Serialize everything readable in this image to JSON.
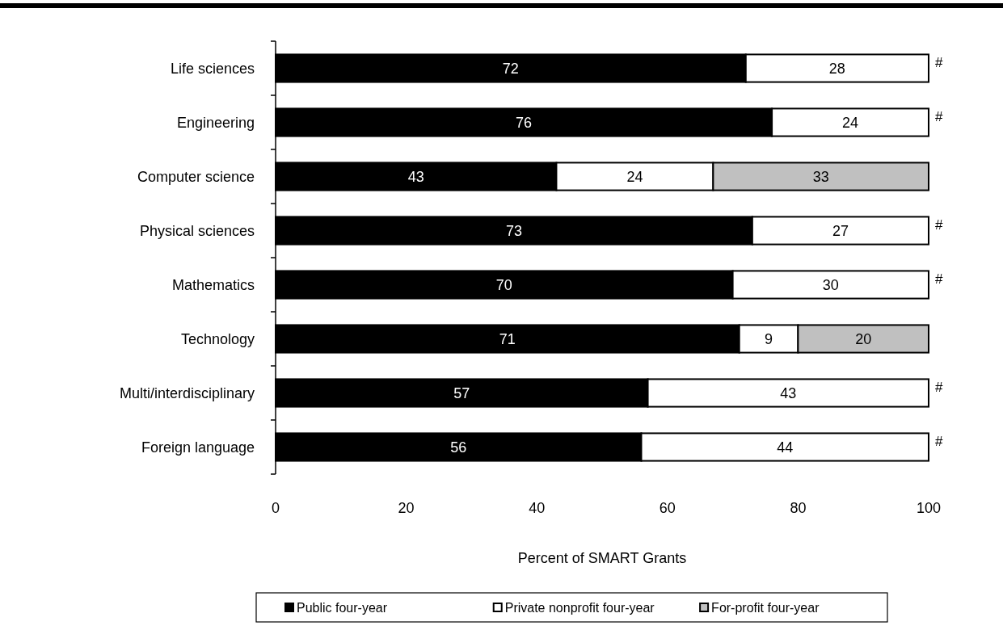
{
  "chart_data": {
    "type": "bar",
    "orientation": "horizontal",
    "stacked": true,
    "xlabel": "Percent of SMART Grants",
    "categories": [
      "Life sciences",
      "Engineering",
      "Computer science",
      "Physical sciences",
      "Mathematics",
      "Technology",
      "Multi/interdisciplinary",
      "Foreign language"
    ],
    "series": [
      {
        "name": "Public four-year",
        "color": "#000000",
        "values": [
          72,
          76,
          43,
          73,
          70,
          71,
          57,
          56
        ],
        "value_labels": [
          "72",
          "76",
          "43",
          "73",
          "70",
          "71",
          "57",
          "56"
        ]
      },
      {
        "name": "Private nonprofit four-year",
        "color": "#ffffff",
        "values": [
          28,
          24,
          24,
          27,
          30,
          9,
          43,
          44
        ],
        "value_labels": [
          "28",
          "24",
          "24",
          "27",
          "30",
          "9",
          "43",
          "44"
        ]
      },
      {
        "name": "For-profit four-year",
        "color": "#c0c0c0",
        "values": [
          0,
          0,
          33,
          0,
          0,
          20,
          0,
          0
        ],
        "value_labels": [
          "#",
          "#",
          "33",
          "#",
          "#",
          "20",
          "#",
          "#"
        ]
      }
    ],
    "xlim": [
      0,
      100
    ],
    "xticks": [
      0,
      20,
      40,
      60,
      80,
      100
    ],
    "legend": "bottom"
  }
}
